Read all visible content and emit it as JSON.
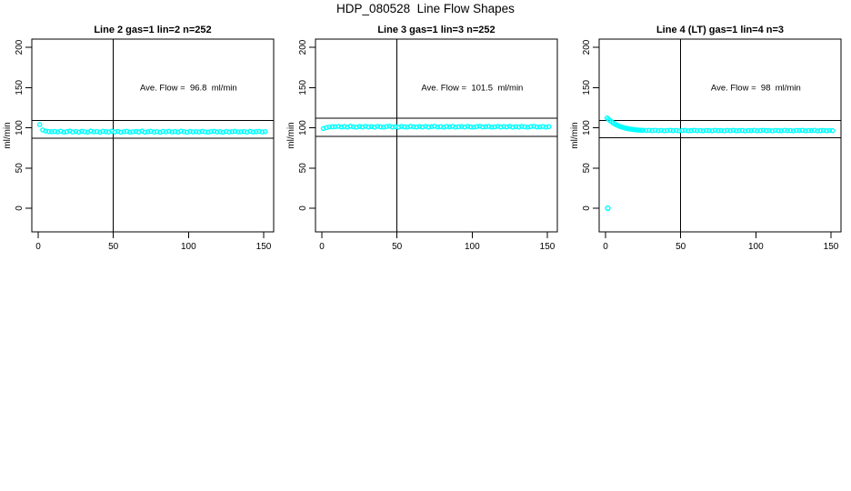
{
  "title": "HDP_080528  Line Flow Shapes",
  "colors": {
    "background": "#FFFFFF",
    "points": "#00FFFF",
    "axis": "#000000",
    "text": "#000000"
  },
  "chart_data": [
    {
      "type": "scatter",
      "title": "Line 2 gas=1 lin=2 n=252",
      "annotation": "Ave. Flow =  96.8  ml/min",
      "ave_flow_ml_min": 96.8,
      "n": 252,
      "xlabel": "",
      "ylabel": "ml/min",
      "xlim": [
        0,
        150
      ],
      "ylim": [
        0,
        200
      ],
      "xticks": [
        0,
        50,
        100,
        150
      ],
      "yticks": [
        0,
        50,
        100,
        150,
        200
      ],
      "vline_x": 50,
      "ref_lines_y": [
        109,
        87
      ],
      "annotation_at": [
        100,
        150
      ],
      "grid": false,
      "points": [
        [
          1,
          104
        ],
        [
          3,
          97.3
        ],
        [
          5,
          95.9
        ],
        [
          7,
          95.3
        ],
        [
          9,
          95.1
        ],
        [
          11,
          95.4
        ],
        [
          13,
          94.8
        ],
        [
          15,
          95.7
        ],
        [
          17,
          94.6
        ],
        [
          19,
          95.1
        ],
        [
          21,
          95.9
        ],
        [
          23,
          94.7
        ],
        [
          25,
          95.3
        ],
        [
          27,
          94.5
        ],
        [
          29,
          95.6
        ],
        [
          31,
          95.0
        ],
        [
          33,
          94.6
        ],
        [
          35,
          95.8
        ],
        [
          37,
          94.9
        ],
        [
          39,
          95.3
        ],
        [
          41,
          94.4
        ],
        [
          43,
          95.5
        ],
        [
          45,
          95.1
        ],
        [
          47,
          94.7
        ],
        [
          49,
          95.7
        ],
        [
          51,
          94.8
        ],
        [
          53,
          95.4
        ],
        [
          55,
          94.5
        ],
        [
          57,
          95.2
        ],
        [
          59,
          95.6
        ],
        [
          61,
          94.6
        ],
        [
          63,
          95.0
        ],
        [
          65,
          95.3
        ],
        [
          67,
          94.8
        ],
        [
          69,
          95.8
        ],
        [
          71,
          94.5
        ],
        [
          73,
          95.1
        ],
        [
          75,
          95.5
        ],
        [
          77,
          94.7
        ],
        [
          79,
          95.2
        ],
        [
          81,
          94.4
        ],
        [
          83,
          95.4
        ],
        [
          85,
          95.0
        ],
        [
          87,
          95.6
        ],
        [
          89,
          94.8
        ],
        [
          91,
          95.3
        ],
        [
          93,
          94.6
        ],
        [
          95,
          95.7
        ],
        [
          97,
          95.1
        ],
        [
          99,
          94.5
        ],
        [
          101,
          95.4
        ],
        [
          103,
          94.9
        ],
        [
          105,
          95.2
        ],
        [
          107,
          94.7
        ],
        [
          109,
          95.5
        ],
        [
          111,
          95.0
        ],
        [
          113,
          94.6
        ],
        [
          115,
          95.3
        ],
        [
          117,
          95.6
        ],
        [
          119,
          94.8
        ],
        [
          121,
          95.1
        ],
        [
          123,
          94.5
        ],
        [
          125,
          95.4
        ],
        [
          127,
          94.7
        ],
        [
          129,
          95.2
        ],
        [
          131,
          95.5
        ],
        [
          133,
          94.9
        ],
        [
          135,
          95.0
        ],
        [
          137,
          95.3
        ],
        [
          139,
          94.6
        ],
        [
          141,
          95.6
        ],
        [
          143,
          94.8
        ],
        [
          145,
          95.1
        ],
        [
          147,
          95.4
        ],
        [
          149,
          94.7
        ],
        [
          151,
          95.2
        ]
      ],
      "outliers": []
    },
    {
      "type": "scatter",
      "title": "Line 3 gas=1 lin=3 n=252",
      "annotation": "Ave. Flow =  101.5  ml/min",
      "ave_flow_ml_min": 101.5,
      "n": 252,
      "xlabel": "",
      "ylabel": "ml/min",
      "xlim": [
        0,
        150
      ],
      "ylim": [
        0,
        200
      ],
      "xticks": [
        0,
        50,
        100,
        150
      ],
      "yticks": [
        0,
        50,
        100,
        150,
        200
      ],
      "vline_x": 50,
      "ref_lines_y": [
        112,
        89
      ],
      "annotation_at": [
        100,
        150
      ],
      "grid": false,
      "points": [
        [
          1,
          99.0
        ],
        [
          3,
          100.2
        ],
        [
          5,
          100.9
        ],
        [
          7,
          101.2
        ],
        [
          9,
          101.3
        ],
        [
          11,
          101.7
        ],
        [
          13,
          100.9
        ],
        [
          15,
          101.5
        ],
        [
          17,
          100.8
        ],
        [
          19,
          101.9
        ],
        [
          21,
          101.2
        ],
        [
          23,
          100.7
        ],
        [
          25,
          101.6
        ],
        [
          27,
          101.0
        ],
        [
          29,
          101.8
        ],
        [
          31,
          100.9
        ],
        [
          33,
          101.4
        ],
        [
          35,
          100.8
        ],
        [
          37,
          101.7
        ],
        [
          39,
          101.1
        ],
        [
          41,
          100.8
        ],
        [
          43,
          101.5
        ],
        [
          45,
          101.9
        ],
        [
          47,
          100.9
        ],
        [
          49,
          101.3
        ],
        [
          51,
          100.7
        ],
        [
          53,
          101.6
        ],
        [
          55,
          101.1
        ],
        [
          57,
          100.8
        ],
        [
          59,
          101.8
        ],
        [
          61,
          101.2
        ],
        [
          63,
          100.9
        ],
        [
          65,
          101.5
        ],
        [
          67,
          101.0
        ],
        [
          69,
          101.7
        ],
        [
          71,
          100.8
        ],
        [
          73,
          101.3
        ],
        [
          75,
          101.9
        ],
        [
          77,
          100.9
        ],
        [
          79,
          101.4
        ],
        [
          81,
          100.7
        ],
        [
          83,
          101.6
        ],
        [
          85,
          101.1
        ],
        [
          87,
          101.8
        ],
        [
          89,
          100.8
        ],
        [
          91,
          101.2
        ],
        [
          93,
          101.5
        ],
        [
          95,
          100.9
        ],
        [
          97,
          101.7
        ],
        [
          99,
          101.0
        ],
        [
          101,
          100.8
        ],
        [
          103,
          101.4
        ],
        [
          105,
          101.9
        ],
        [
          107,
          100.9
        ],
        [
          109,
          101.3
        ],
        [
          111,
          101.6
        ],
        [
          113,
          100.8
        ],
        [
          115,
          101.1
        ],
        [
          117,
          101.7
        ],
        [
          119,
          100.9
        ],
        [
          121,
          101.5
        ],
        [
          123,
          101.0
        ],
        [
          125,
          101.8
        ],
        [
          127,
          100.8
        ],
        [
          129,
          101.3
        ],
        [
          131,
          100.9
        ],
        [
          133,
          101.6
        ],
        [
          135,
          101.2
        ],
        [
          137,
          100.7
        ],
        [
          139,
          101.4
        ],
        [
          141,
          101.8
        ],
        [
          143,
          100.9
        ],
        [
          145,
          101.1
        ],
        [
          147,
          101.5
        ],
        [
          149,
          100.8
        ],
        [
          151,
          101.3
        ]
      ],
      "outliers": []
    },
    {
      "type": "scatter",
      "title": "Line 4 (LT) gas=1 lin=4 n=3",
      "annotation": "Ave. Flow =  98  ml/min",
      "ave_flow_ml_min": 98,
      "n": 3,
      "xlabel": "",
      "ylabel": "ml/min",
      "xlim": [
        0,
        150
      ],
      "ylim": [
        0,
        200
      ],
      "xticks": [
        0,
        50,
        100,
        150
      ],
      "yticks": [
        0,
        50,
        100,
        150,
        200
      ],
      "vline_x": 50,
      "ref_lines_y": [
        109,
        87.5
      ],
      "annotation_at": [
        100,
        150
      ],
      "grid": false,
      "points": [
        [
          1,
          112.2
        ],
        [
          2,
          110.5
        ],
        [
          3,
          108.9
        ],
        [
          4,
          107.4
        ],
        [
          5,
          106.1
        ],
        [
          6,
          104.9
        ],
        [
          7,
          103.8
        ],
        [
          8,
          102.9
        ],
        [
          9,
          102.1
        ],
        [
          10,
          101.4
        ],
        [
          11,
          100.7
        ],
        [
          12,
          100.2
        ],
        [
          13,
          99.7
        ],
        [
          14,
          99.2
        ],
        [
          15,
          98.8
        ],
        [
          16,
          98.5
        ],
        [
          17,
          98.2
        ],
        [
          18,
          97.9
        ],
        [
          19,
          97.7
        ],
        [
          20,
          97.5
        ],
        [
          21,
          97.3
        ],
        [
          22,
          97.1
        ],
        [
          23,
          97.0
        ],
        [
          24,
          96.9
        ],
        [
          25,
          96.8
        ],
        [
          27,
          96.7
        ],
        [
          29,
          96.9
        ],
        [
          31,
          96.5
        ],
        [
          33,
          96.8
        ],
        [
          35,
          96.4
        ],
        [
          37,
          96.7
        ],
        [
          39,
          96.3
        ],
        [
          41,
          96.6
        ],
        [
          43,
          96.9
        ],
        [
          45,
          96.4
        ],
        [
          47,
          96.7
        ],
        [
          49,
          96.2
        ],
        [
          51,
          96.6
        ],
        [
          53,
          96.8
        ],
        [
          55,
          96.3
        ],
        [
          57,
          96.5
        ],
        [
          59,
          96.9
        ],
        [
          61,
          96.4
        ],
        [
          63,
          96.6
        ],
        [
          65,
          96.2
        ],
        [
          67,
          96.7
        ],
        [
          69,
          96.5
        ],
        [
          71,
          96.3
        ],
        [
          73,
          96.8
        ],
        [
          75,
          96.4
        ],
        [
          77,
          96.6
        ],
        [
          79,
          96.2
        ],
        [
          81,
          96.7
        ],
        [
          83,
          96.4
        ],
        [
          85,
          96.8
        ],
        [
          87,
          96.3
        ],
        [
          89,
          96.5
        ],
        [
          91,
          96.7
        ],
        [
          93,
          96.2
        ],
        [
          95,
          96.6
        ],
        [
          97,
          96.4
        ],
        [
          99,
          96.8
        ],
        [
          101,
          96.3
        ],
        [
          103,
          96.5
        ],
        [
          105,
          96.9
        ],
        [
          107,
          96.4
        ],
        [
          109,
          96.6
        ],
        [
          111,
          96.2
        ],
        [
          113,
          96.7
        ],
        [
          115,
          96.5
        ],
        [
          117,
          96.3
        ],
        [
          119,
          96.8
        ],
        [
          121,
          96.4
        ],
        [
          123,
          96.6
        ],
        [
          125,
          96.2
        ],
        [
          127,
          96.7
        ],
        [
          129,
          96.5
        ],
        [
          131,
          96.9
        ],
        [
          133,
          96.3
        ],
        [
          135,
          96.6
        ],
        [
          137,
          96.4
        ],
        [
          139,
          96.8
        ],
        [
          141,
          96.2
        ],
        [
          143,
          96.5
        ],
        [
          145,
          96.7
        ],
        [
          147,
          96.3
        ],
        [
          149,
          96.6
        ],
        [
          151,
          96.4
        ]
      ],
      "outliers": [
        [
          1.5,
          0
        ]
      ]
    }
  ]
}
